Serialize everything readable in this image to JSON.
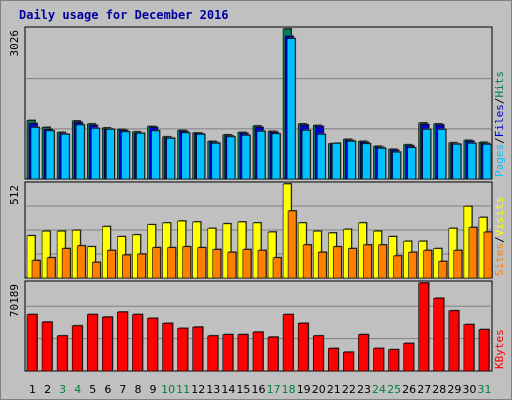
{
  "title": "Daily usage for December 2016",
  "colors": {
    "hits": "#008060",
    "files": "#0000d0",
    "pages": "#00c0ff",
    "visits": "#ffff00",
    "sites": "#ff8000",
    "kbytes": "#ff0000",
    "weekday_label": "#000000",
    "weekend_label": "#008040"
  },
  "chart_data": [
    {
      "type": "bar",
      "panel": "hits-files-pages",
      "ymax_label": "3026",
      "ylim": [
        0,
        3026
      ],
      "legend": [
        {
          "name": "Pages",
          "color": "#00c0ff"
        },
        {
          "name": "Files",
          "color": "#0000d0"
        },
        {
          "name": "Hits",
          "color": "#008060"
        }
      ],
      "categories": [
        "1",
        "2",
        "3",
        "4",
        "5",
        "6",
        "7",
        "8",
        "9",
        "10",
        "11",
        "12",
        "13",
        "14",
        "15",
        "16",
        "17",
        "18",
        "19",
        "20",
        "21",
        "22",
        "23",
        "24",
        "25",
        "26",
        "27",
        "28",
        "29",
        "30",
        "31"
      ],
      "series": [
        {
          "name": "Hits",
          "values": [
            1180,
            1040,
            940,
            1170,
            1110,
            1030,
            1000,
            950,
            1060,
            850,
            980,
            930,
            760,
            890,
            940,
            1070,
            960,
            3026,
            1110,
            1080,
            710,
            800,
            760,
            660,
            600,
            690,
            1130,
            1110,
            730,
            780,
            740
          ]
        },
        {
          "name": "Files",
          "values": [
            1120,
            1000,
            910,
            1140,
            1080,
            1010,
            980,
            920,
            1040,
            830,
            960,
            920,
            740,
            870,
            920,
            1040,
            940,
            2880,
            1090,
            1060,
            690,
            780,
            740,
            640,
            580,
            670,
            1100,
            1090,
            710,
            760,
            720
          ]
        },
        {
          "name": "Pages",
          "values": [
            1040,
            970,
            900,
            1090,
            1020,
            1000,
            950,
            920,
            970,
            820,
            930,
            900,
            720,
            850,
            880,
            960,
            910,
            2830,
            980,
            900,
            720,
            760,
            710,
            620,
            540,
            630,
            1000,
            1000,
            700,
            720,
            700
          ]
        }
      ]
    },
    {
      "type": "bar",
      "panel": "visits-sites",
      "ymax_label": "512",
      "ylim": [
        0,
        512
      ],
      "legend": [
        {
          "name": "Sites",
          "color": "#ff8000"
        },
        {
          "name": "Visits",
          "color": "#ffff00"
        }
      ],
      "categories": [
        "1",
        "2",
        "3",
        "4",
        "5",
        "6",
        "7",
        "8",
        "9",
        "10",
        "11",
        "12",
        "13",
        "14",
        "15",
        "16",
        "17",
        "18",
        "19",
        "20",
        "21",
        "22",
        "23",
        "24",
        "25",
        "26",
        "27",
        "28",
        "29",
        "30",
        "31"
      ],
      "series": [
        {
          "name": "Visits",
          "values": [
            230,
            255,
            255,
            260,
            170,
            280,
            225,
            235,
            290,
            300,
            310,
            305,
            270,
            295,
            305,
            300,
            250,
            512,
            300,
            255,
            245,
            265,
            300,
            255,
            225,
            200,
            200,
            160,
            270,
            390,
            330
          ]
        },
        {
          "name": "Sites",
          "values": [
            95,
            110,
            160,
            175,
            85,
            150,
            125,
            130,
            165,
            165,
            170,
            165,
            155,
            140,
            155,
            150,
            110,
            365,
            180,
            140,
            170,
            160,
            180,
            180,
            120,
            140,
            150,
            90,
            150,
            275,
            250
          ]
        }
      ]
    },
    {
      "type": "bar",
      "panel": "kbytes",
      "ymax_label": "70189",
      "ylim": [
        0,
        70189
      ],
      "legend": [
        {
          "name": "KBytes",
          "color": "#ff0000"
        }
      ],
      "categories": [
        "1",
        "2",
        "3",
        "4",
        "5",
        "6",
        "7",
        "8",
        "9",
        "10",
        "11",
        "12",
        "13",
        "14",
        "15",
        "16",
        "17",
        "18",
        "19",
        "20",
        "21",
        "22",
        "23",
        "24",
        "25",
        "26",
        "27",
        "28",
        "29",
        "30",
        "31"
      ],
      "series": [
        {
          "name": "KBytes",
          "values": [
            45000,
            39000,
            28000,
            36000,
            45000,
            43000,
            47000,
            45000,
            42000,
            38000,
            34000,
            35000,
            28000,
            29000,
            29000,
            31000,
            27000,
            45000,
            38000,
            28000,
            18000,
            15000,
            29000,
            18000,
            17000,
            22000,
            70189,
            58000,
            48000,
            37000,
            33000
          ]
        }
      ]
    }
  ]
}
